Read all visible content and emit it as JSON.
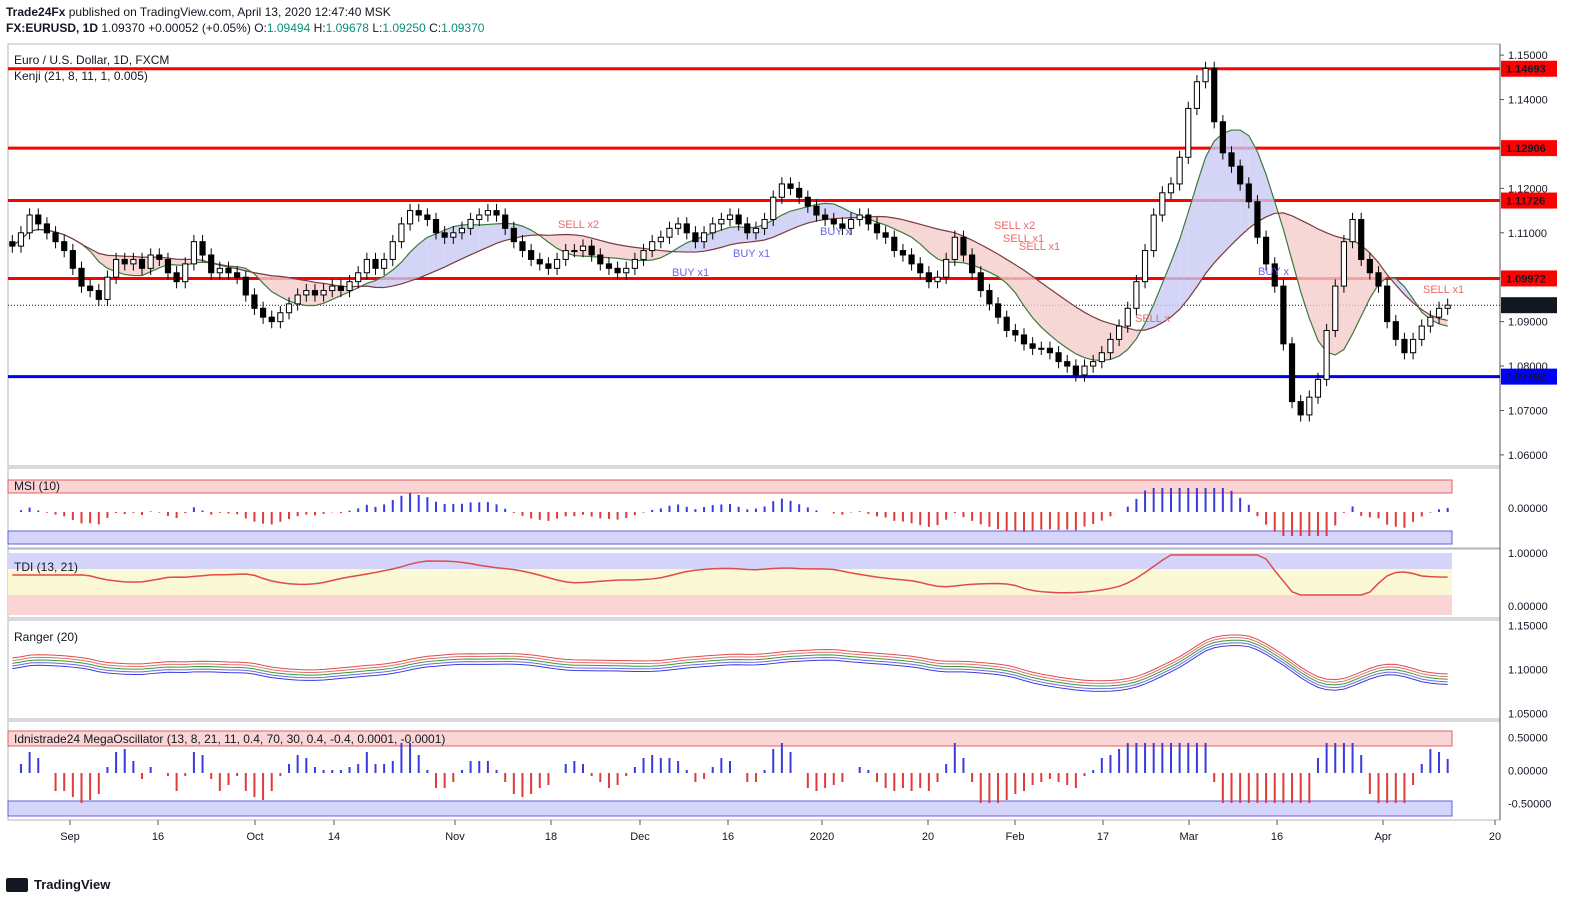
{
  "header": {
    "publisher": "Trade24Fx",
    "published_text": "published on TradingView.com, April 13, 2020 12:47:40 MSK",
    "symbol": "FX:EURUSD, 1D",
    "last": "1.09370",
    "change": "+0.00052 (+0.05%)",
    "o_label": "O:",
    "o": "1.09494",
    "h_label": "H:",
    "h": "1.09678",
    "l_label": "L:",
    "l": "1.09250",
    "c_label": "C:",
    "c": "1.09370"
  },
  "main_pane": {
    "title": "Euro / U.S. Dollar, 1D, FXCM",
    "indicator": "Kenji (21, 8, 11, 1, 0.005)"
  },
  "panes": {
    "msi": "MSI (10)",
    "tdi": "TDI (13, 21)",
    "ranger": "Ranger (20)",
    "mega": "Idnistrade24 MegaOscillator (13, 8, 21, 11, 0.4, 70, 30, 0.4, -0.4, 0.0001, -0.0001)"
  },
  "footer": {
    "brand": "TradingView"
  },
  "colors": {
    "up": "#ffffff",
    "down": "#000000",
    "red_level": "#ff0000",
    "blue_level": "#0000ff",
    "sell": "#f06666",
    "buy": "#6666ee"
  },
  "chart_data": {
    "type": "candlestick",
    "title": "Euro / U.S. Dollar, 1D, FXCM",
    "y_range": [
      1.0575,
      1.1525
    ],
    "price_ticks": [
      "1.15000",
      "1.14000",
      "1.12000",
      "1.11000",
      "1.09000",
      "1.08000",
      "1.07000",
      "1.06000"
    ],
    "x_ticks": [
      "Sep",
      "16",
      "Oct",
      "14",
      "Nov",
      "18",
      "Dec",
      "16",
      "2020",
      "20",
      "Feb",
      "17",
      "Mar",
      "16",
      "Apr",
      "20"
    ],
    "horizontal_levels": [
      {
        "value": 1.14693,
        "label": "1.14693",
        "color": "red"
      },
      {
        "value": 1.12906,
        "label": "1.12906",
        "color": "red"
      },
      {
        "value": 1.11726,
        "label": "1.11726",
        "color": "red"
      },
      {
        "value": 1.09972,
        "label": "1.09972",
        "color": "red"
      },
      {
        "value": 1.07762,
        "label": "1.07762",
        "color": "blue"
      }
    ],
    "last_price": {
      "value": 1.0937,
      "label": "1.09370"
    },
    "closes": [
      1.107,
      1.11,
      1.114,
      1.112,
      1.11,
      1.108,
      1.106,
      1.102,
      1.098,
      1.097,
      1.095,
      1.1,
      1.104,
      1.103,
      1.104,
      1.102,
      1.105,
      1.104,
      1.101,
      1.099,
      1.103,
      1.108,
      1.105,
      1.101,
      1.102,
      1.101,
      1.1,
      1.096,
      1.093,
      1.091,
      1.09,
      1.092,
      1.094,
      1.096,
      1.097,
      1.096,
      1.097,
      1.098,
      1.097,
      1.099,
      1.101,
      1.104,
      1.102,
      1.104,
      1.108,
      1.112,
      1.115,
      1.114,
      1.113,
      1.11,
      1.109,
      1.11,
      1.111,
      1.113,
      1.114,
      1.115,
      1.114,
      1.111,
      1.108,
      1.106,
      1.104,
      1.103,
      1.102,
      1.104,
      1.106,
      1.106,
      1.107,
      1.105,
      1.103,
      1.102,
      1.101,
      1.102,
      1.104,
      1.106,
      1.108,
      1.109,
      1.111,
      1.112,
      1.11,
      1.108,
      1.11,
      1.112,
      1.113,
      1.114,
      1.112,
      1.11,
      1.111,
      1.113,
      1.118,
      1.121,
      1.12,
      1.118,
      1.116,
      1.114,
      1.113,
      1.112,
      1.111,
      1.113,
      1.114,
      1.112,
      1.11,
      1.109,
      1.106,
      1.105,
      1.103,
      1.101,
      1.099,
      1.1,
      1.104,
      1.109,
      1.105,
      1.101,
      1.097,
      1.094,
      1.091,
      1.088,
      1.087,
      1.085,
      1.084,
      1.084,
      1.083,
      1.081,
      1.08,
      1.078,
      1.08,
      1.081,
      1.083,
      1.086,
      1.089,
      1.093,
      1.099,
      1.106,
      1.114,
      1.119,
      1.121,
      1.127,
      1.138,
      1.144,
      1.147,
      1.135,
      1.128,
      1.125,
      1.121,
      1.117,
      1.109,
      1.103,
      1.098,
      1.085,
      1.072,
      1.069,
      1.073,
      1.077,
      1.088,
      1.098,
      1.108,
      1.113,
      1.104,
      1.101,
      1.098,
      1.09,
      1.086,
      1.083,
      1.086,
      1.089,
      1.091,
      1.093,
      1.0937
    ],
    "signals": [
      {
        "text": "SELL x2",
        "type": "sell"
      },
      {
        "text": "BUY x1",
        "type": "buy"
      },
      {
        "text": "BUY x1",
        "type": "buy"
      },
      {
        "text": "BUY x",
        "type": "buy"
      },
      {
        "text": "SELL x2",
        "type": "sell"
      },
      {
        "text": "SELL x1",
        "type": "sell"
      },
      {
        "text": "SELL x1",
        "type": "sell"
      },
      {
        "text": "SELL x",
        "type": "sell"
      },
      {
        "text": "BUY x",
        "type": "buy"
      },
      {
        "text": "SELL x1",
        "type": "sell"
      }
    ],
    "msi": {
      "ticks": [
        "0.00000"
      ]
    },
    "tdi": {
      "ticks": [
        "1.00000",
        "0.00000"
      ]
    },
    "ranger": {
      "ticks": [
        "1.15000",
        "1.10000",
        "1.05000"
      ]
    },
    "mega": {
      "ticks": [
        "0.50000",
        "0.00000",
        "-0.50000"
      ]
    }
  }
}
